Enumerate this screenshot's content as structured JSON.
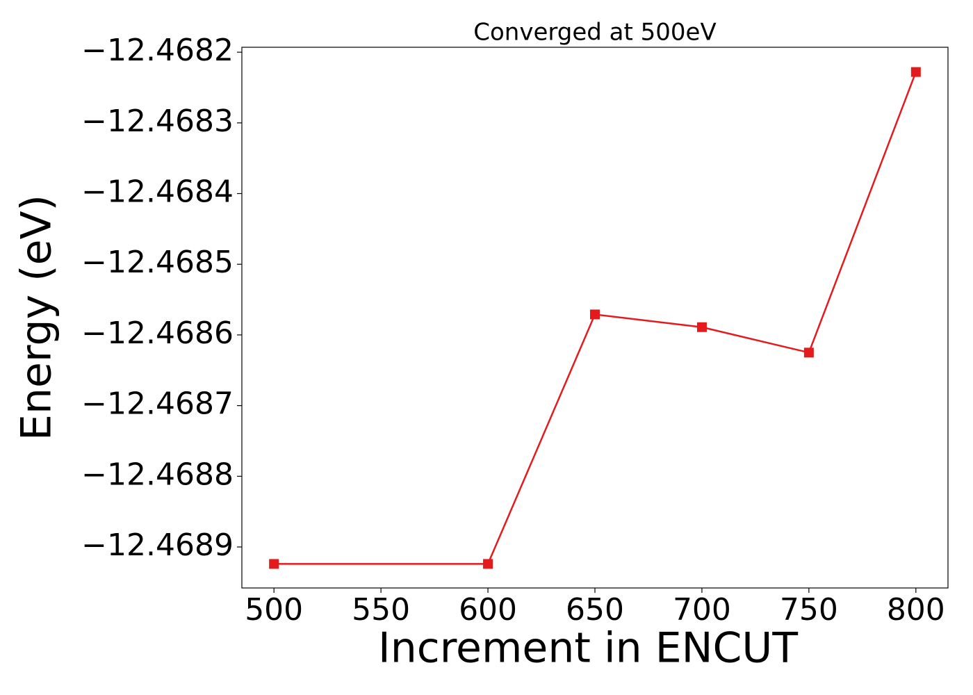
{
  "chart_data": {
    "type": "line",
    "title": "Converged at 500eV",
    "x_label": "Increment in ENCUT",
    "y_label": "Energy (eV)",
    "x": [
      500,
      600,
      650,
      700,
      750,
      800
    ],
    "values": [
      -12.468924,
      -12.468924,
      -12.468571,
      -12.468589,
      -12.468625,
      -12.468228
    ],
    "color": "#e41a1c",
    "marker": "square",
    "xlim": [
      485,
      815
    ],
    "xticks": [
      500,
      550,
      600,
      650,
      700,
      750,
      800
    ],
    "ylim": [
      -12.468958,
      -12.468193
    ],
    "yticks": [
      {
        "value": -12.4689,
        "label": "−12.4689"
      },
      {
        "value": -12.4688,
        "label": "−12.4688"
      },
      {
        "value": -12.4687,
        "label": "−12.4687"
      },
      {
        "value": -12.4686,
        "label": "−12.4686"
      },
      {
        "value": -12.4685,
        "label": "−12.4685"
      },
      {
        "value": -12.4684,
        "label": "−12.4684"
      },
      {
        "value": -12.4683,
        "label": "−12.4683"
      },
      {
        "value": -12.4682,
        "label": "−12.4682"
      }
    ],
    "grid": false
  }
}
